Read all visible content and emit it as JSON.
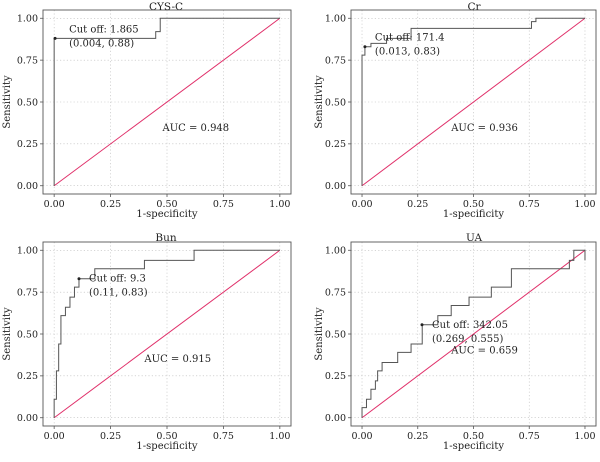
{
  "chart_data": [
    {
      "type": "line",
      "title": "CYS-C",
      "xlabel": "1-specificity",
      "ylabel": "Sensitivity",
      "xlim": [
        0,
        1
      ],
      "ylim": [
        0,
        1
      ],
      "xticks": [
        "0.00",
        "0.25",
        "0.50",
        "0.75",
        "1.00"
      ],
      "yticks": [
        "0.00",
        "0.25",
        "0.50",
        "0.75",
        "1.00"
      ],
      "grid": true,
      "roc_curve": {
        "x": [
          0,
          0,
          0.004,
          0.004,
          0.45,
          0.45,
          0.47,
          0.47,
          1.0
        ],
        "y": [
          0,
          0.88,
          0.88,
          0.88,
          0.88,
          0.92,
          0.92,
          1.0,
          1.0
        ]
      },
      "reference_line": {
        "x": [
          0,
          1
        ],
        "y": [
          0,
          1
        ]
      },
      "cutoff_point": {
        "x": 0.004,
        "y": 0.88
      },
      "annotations": {
        "cutoff": "Cut off: 1.865",
        "coords": "(0.004, 0.88)",
        "auc": "AUC = 0.948"
      }
    },
    {
      "type": "line",
      "title": "Cr",
      "xlabel": "1-specificity",
      "ylabel": "Sensitivity",
      "xlim": [
        0,
        1
      ],
      "ylim": [
        0,
        1
      ],
      "xticks": [
        "0.00",
        "0.25",
        "0.50",
        "0.75",
        "1.00"
      ],
      "yticks": [
        "0.00",
        "0.25",
        "0.50",
        "0.75",
        "1.00"
      ],
      "grid": true,
      "roc_curve": {
        "x": [
          0,
          0,
          0.013,
          0.013,
          0.04,
          0.04,
          0.11,
          0.11,
          0.22,
          0.22,
          0.76,
          0.76,
          0.78,
          0.78,
          1.0
        ],
        "y": [
          0,
          0.78,
          0.78,
          0.83,
          0.83,
          0.85,
          0.85,
          0.88,
          0.88,
          0.94,
          0.94,
          0.98,
          0.98,
          1.0,
          1.0
        ]
      },
      "reference_line": {
        "x": [
          0,
          1
        ],
        "y": [
          0,
          1
        ]
      },
      "cutoff_point": {
        "x": 0.013,
        "y": 0.83
      },
      "annotations": {
        "cutoff": "Cut off: 171.4",
        "coords": "(0.013, 0.83)",
        "auc": "AUC = 0.936"
      }
    },
    {
      "type": "line",
      "title": "Bun",
      "xlabel": "1-specificity",
      "ylabel": "Sensitivity",
      "xlim": [
        0,
        1
      ],
      "ylim": [
        0,
        1
      ],
      "xticks": [
        "0.00",
        "0.25",
        "0.50",
        "0.75",
        "1.00"
      ],
      "yticks": [
        "0.00",
        "0.25",
        "0.50",
        "0.75",
        "1.00"
      ],
      "grid": true,
      "roc_curve": {
        "x": [
          0,
          0,
          0.01,
          0.01,
          0.02,
          0.02,
          0.03,
          0.03,
          0.05,
          0.05,
          0.07,
          0.07,
          0.09,
          0.09,
          0.11,
          0.11,
          0.18,
          0.18,
          0.4,
          0.4,
          0.62,
          0.62,
          1.0
        ],
        "y": [
          0,
          0.11,
          0.11,
          0.28,
          0.28,
          0.44,
          0.44,
          0.61,
          0.61,
          0.66,
          0.66,
          0.72,
          0.72,
          0.78,
          0.78,
          0.83,
          0.83,
          0.89,
          0.89,
          0.94,
          0.94,
          1.0,
          1.0
        ]
      },
      "reference_line": {
        "x": [
          0,
          1
        ],
        "y": [
          0,
          1
        ]
      },
      "cutoff_point": {
        "x": 0.11,
        "y": 0.83
      },
      "annotations": {
        "cutoff": "Cut off: 9.3",
        "coords": "(0.11, 0.83)",
        "auc": "AUC = 0.915"
      }
    },
    {
      "type": "line",
      "title": "UA",
      "xlabel": "1-specificity",
      "ylabel": "Sensitivity",
      "xlim": [
        0,
        1
      ],
      "ylim": [
        0,
        1
      ],
      "xticks": [
        "0.00",
        "0.25",
        "0.50",
        "0.75",
        "1.00"
      ],
      "yticks": [
        "0.00",
        "0.25",
        "0.50",
        "0.75",
        "1.00"
      ],
      "grid": true,
      "roc_curve": {
        "x": [
          0,
          0,
          0.02,
          0.02,
          0.04,
          0.04,
          0.06,
          0.06,
          0.07,
          0.07,
          0.09,
          0.09,
          0.16,
          0.16,
          0.22,
          0.22,
          0.27,
          0.27,
          0.34,
          0.34,
          0.4,
          0.4,
          0.48,
          0.48,
          0.58,
          0.58,
          0.67,
          0.67,
          0.93,
          0.93,
          0.95,
          0.95,
          1.0,
          1.0
        ],
        "y": [
          0,
          0.06,
          0.06,
          0.11,
          0.11,
          0.17,
          0.17,
          0.22,
          0.22,
          0.28,
          0.28,
          0.33,
          0.33,
          0.39,
          0.39,
          0.44,
          0.44,
          0.555,
          0.555,
          0.61,
          0.61,
          0.67,
          0.67,
          0.72,
          0.72,
          0.78,
          0.78,
          0.89,
          0.89,
          0.94,
          0.94,
          1.0,
          1.0,
          0.94
        ]
      },
      "reference_line": {
        "x": [
          0,
          1
        ],
        "y": [
          0,
          1
        ]
      },
      "cutoff_point": {
        "x": 0.269,
        "y": 0.555
      },
      "annotations": {
        "cutoff": "Cut off: 342.05",
        "coords": "(0.269, 0.555)",
        "auc": "AUC = 0.659"
      }
    }
  ],
  "colors": {
    "curve": "#555555",
    "reference_line": "#e0306a",
    "grid": "#bdbdbd",
    "frame": "#555555"
  }
}
